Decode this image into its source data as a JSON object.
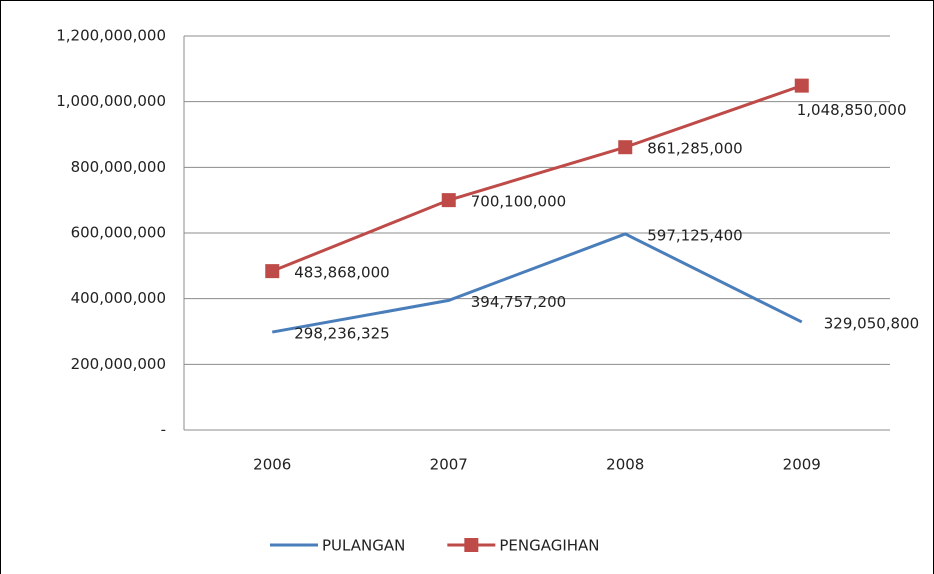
{
  "chart_data": {
    "type": "line",
    "categories": [
      "2006",
      "2007",
      "2008",
      "2009"
    ],
    "series": [
      {
        "name": "PULANGAN",
        "color": "#4a7ebb",
        "marker": "none",
        "values": [
          298236325,
          394757200,
          597125400,
          329050800
        ],
        "value_labels": [
          "298,236,325",
          "394,757,200",
          "597,125,400",
          "329,050,800"
        ]
      },
      {
        "name": "PENGAGIHAN",
        "color": "#be4b48",
        "marker": "square",
        "values": [
          483868000,
          700100000,
          861285000,
          1048850000
        ],
        "value_labels": [
          "483,868,000",
          "700,100,000",
          "861,285,000",
          "1,048,850,000"
        ]
      }
    ],
    "ylim": [
      0,
      1200000000
    ],
    "yticks": [
      {
        "value": 0,
        "label": "-"
      },
      {
        "value": 200000000,
        "label": "200,000,000"
      },
      {
        "value": 400000000,
        "label": "400,000,000"
      },
      {
        "value": 600000000,
        "label": "600,000,000"
      },
      {
        "value": 800000000,
        "label": "800,000,000"
      },
      {
        "value": 1000000000,
        "label": "1,000,000,000"
      },
      {
        "value": 1200000000,
        "label": "1,200,000,000"
      }
    ],
    "grid": true,
    "legend": "bottom"
  }
}
